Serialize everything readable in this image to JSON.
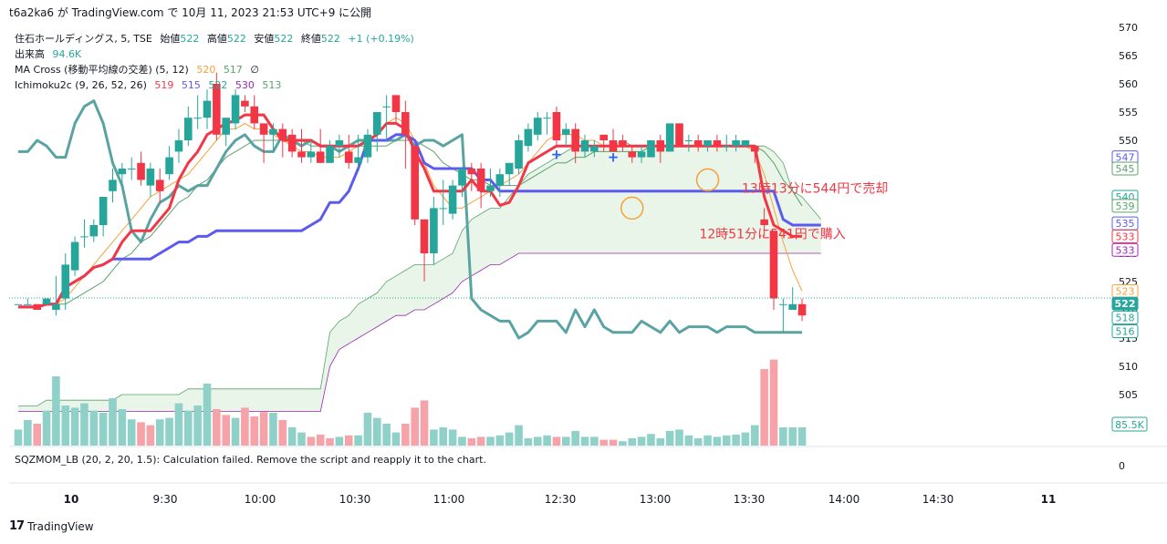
{
  "header": {
    "published": "t6a2ka6 が TradingView.com で 10月 11, 2023 21:53 UTC+9 に公開"
  },
  "legend": {
    "symbol": "住石ホールディングス, 5, TSE",
    "open_label": "始値",
    "open": "522",
    "high_label": "高値",
    "high": "522",
    "low_label": "安値",
    "low": "522",
    "close_label": "終値",
    "close": "522",
    "change": "+1 (+0.19%)",
    "volume_label": "出来高",
    "volume": "94.6K",
    "ma_label": "MA Cross (移動平均線の交差) (5, 12)",
    "ma_fast": "520",
    "ma_slow": "517",
    "ma_flag": "∅",
    "ichimoku_label": "Ichimoku2c (9, 26, 52, 26)",
    "ichi_v1": "519",
    "ichi_v2": "515",
    "ichi_v3": "522",
    "ichi_v4": "530",
    "ichi_v5": "513"
  },
  "indicator_note": "SQZMOM_LB (20, 2, 20, 1.5): Calculation failed. Remove the script and reapply it to the chart.",
  "footer": {
    "brand": "TradingView"
  },
  "colors": {
    "up": "#26a69a",
    "down": "#f23645",
    "tenkan": "#f23645",
    "kijun": "#5b5bf0",
    "chikou": "#5ba3a3",
    "cloud": "#e6f4e6",
    "ma_fast": "#f5a23c",
    "ma_slow": "#5aa36a"
  },
  "chart_data": {
    "type": "candlestick",
    "symbol": "住石ホールディングス",
    "timeframe": "5",
    "y_axis": {
      "min": 500,
      "max": 570,
      "ticks": [
        505,
        510,
        515,
        520,
        525,
        530,
        535,
        540,
        545,
        550,
        555,
        560,
        565,
        570
      ]
    },
    "x_axis_ticks": [
      "10",
      "9:30",
      "10:00",
      "10:30",
      "11:00",
      "12:30",
      "13:00",
      "13:30",
      "14:00",
      "14:30",
      "11"
    ],
    "price_labels": [
      {
        "value": "547",
        "price": 547,
        "color": "#5b5bf0",
        "fill": false
      },
      {
        "value": "545",
        "price": 545,
        "color": "#5aa36a",
        "fill": false
      },
      {
        "value": "540",
        "price": 540,
        "color": "#26a69a",
        "fill": false
      },
      {
        "value": "539",
        "price": 538.4,
        "color": "#5aa36a",
        "fill": false
      },
      {
        "value": "535",
        "price": 535.3,
        "color": "#5b5bf0",
        "fill": false
      },
      {
        "value": "533",
        "price": 533,
        "color": "#f23645",
        "fill": false
      },
      {
        "value": "533",
        "price": 530.6,
        "color": "#9c27b0",
        "fill": false
      },
      {
        "value": "523",
        "price": 523.3,
        "color": "#f5a23c",
        "fill": false
      },
      {
        "value": "522",
        "price": 521.1,
        "color": "#ffffff",
        "fill": true,
        "bg": "#26a69a"
      },
      {
        "value": "518",
        "price": 518.6,
        "color": "#26a69a",
        "fill": false
      },
      {
        "value": "516",
        "price": 516.2,
        "color": "#26a69a",
        "fill": false
      }
    ],
    "volume_label": "85.5K",
    "volume_axis_zero": "0",
    "annotations": [
      {
        "text": "13時13分に544円で売却",
        "price": 541.5,
        "bar": 51.5
      },
      {
        "text": "12時51分に541円で購入",
        "price": 533.5,
        "bar": 47
      }
    ],
    "candles": [
      [
        521,
        521,
        521,
        521
      ],
      [
        521,
        522,
        521,
        521
      ],
      [
        521,
        521,
        520,
        520
      ],
      [
        521,
        522,
        521,
        522
      ],
      [
        520,
        526,
        519,
        521
      ],
      [
        522,
        530,
        520,
        528
      ],
      [
        527,
        533,
        526,
        532
      ],
      [
        533,
        536,
        531,
        533
      ],
      [
        533,
        536,
        532,
        535
      ],
      [
        535,
        540,
        533,
        540
      ],
      [
        541,
        545,
        539,
        543
      ],
      [
        544,
        546,
        542,
        545
      ],
      [
        545,
        547,
        543,
        545
      ],
      [
        546,
        548,
        542,
        543
      ],
      [
        542,
        546,
        540,
        545
      ],
      [
        543,
        545,
        539,
        541
      ],
      [
        544,
        549,
        543,
        547
      ],
      [
        548,
        552,
        546,
        550
      ],
      [
        550,
        556,
        549,
        554
      ],
      [
        554,
        558,
        552,
        554
      ],
      [
        554,
        559,
        552,
        557
      ],
      [
        560,
        562,
        550,
        551
      ],
      [
        551,
        554,
        549,
        554
      ],
      [
        553,
        559,
        552,
        558
      ],
      [
        557,
        558,
        555,
        556
      ],
      [
        556,
        558,
        552,
        553
      ],
      [
        553,
        553,
        546,
        551
      ],
      [
        551,
        553,
        548,
        552
      ],
      [
        552,
        553,
        547,
        550
      ],
      [
        551,
        552,
        547,
        548
      ],
      [
        548,
        552,
        546,
        547
      ],
      [
        547,
        550,
        546,
        548
      ],
      [
        548,
        552,
        546,
        546
      ],
      [
        546,
        550,
        546,
        549
      ],
      [
        549,
        551,
        547,
        550
      ],
      [
        548,
        551,
        545,
        546
      ],
      [
        546,
        551,
        545,
        547
      ],
      [
        547,
        552,
        546,
        551
      ],
      [
        551,
        555,
        548,
        555
      ],
      [
        556,
        558,
        550,
        556
      ],
      [
        558,
        558,
        553,
        555
      ],
      [
        555,
        557,
        545,
        551
      ],
      [
        549,
        549,
        535,
        536
      ],
      [
        536,
        536,
        525,
        530
      ],
      [
        530,
        540,
        528,
        538
      ],
      [
        538,
        543,
        535,
        538
      ],
      [
        537,
        543,
        536,
        542
      ],
      [
        542,
        545,
        540,
        545
      ],
      [
        545,
        546,
        541,
        544
      ],
      [
        545,
        546,
        538,
        541
      ],
      [
        541,
        545,
        540,
        542
      ],
      [
        542,
        545,
        540,
        544
      ],
      [
        544,
        546,
        542,
        546
      ],
      [
        545,
        551,
        544,
        550
      ],
      [
        549,
        553,
        548,
        552
      ],
      [
        551,
        555,
        550,
        554
      ],
      [
        554,
        555,
        551,
        554
      ],
      [
        555,
        556,
        549,
        550
      ],
      [
        551,
        553,
        549,
        552
      ],
      [
        552,
        553,
        546,
        548
      ],
      [
        548,
        551,
        547,
        550
      ],
      [
        548,
        550,
        547,
        549
      ],
      [
        551,
        551,
        548,
        550
      ],
      [
        550,
        552,
        548,
        548
      ],
      [
        550,
        551,
        548,
        549
      ],
      [
        548,
        549,
        546,
        547
      ],
      [
        547,
        549,
        546,
        548
      ],
      [
        547,
        550,
        547,
        550
      ],
      [
        550,
        551,
        546,
        548
      ],
      [
        548,
        553,
        548,
        553
      ],
      [
        553,
        553,
        549,
        549
      ],
      [
        550,
        551,
        548,
        550
      ],
      [
        550,
        551,
        548,
        549
      ],
      [
        549,
        550,
        548,
        550
      ],
      [
        550,
        551,
        548,
        549
      ],
      [
        549,
        551,
        548,
        549
      ],
      [
        549,
        551,
        548,
        550
      ],
      [
        549,
        550,
        549,
        550
      ],
      [
        549,
        549,
        546,
        548
      ],
      [
        536,
        538,
        533,
        535
      ],
      [
        534,
        534,
        520,
        522
      ],
      [
        521,
        522,
        516,
        521
      ],
      [
        520,
        524,
        520,
        521
      ],
      [
        521,
        522,
        518,
        519
      ]
    ],
    "volume": [
      [
        22,
        1
      ],
      [
        35,
        1
      ],
      [
        30,
        0
      ],
      [
        48,
        1
      ],
      [
        95,
        1
      ],
      [
        55,
        1
      ],
      [
        52,
        1
      ],
      [
        58,
        1
      ],
      [
        48,
        1
      ],
      [
        45,
        1
      ],
      [
        65,
        1
      ],
      [
        50,
        1
      ],
      [
        36,
        1
      ],
      [
        32,
        0
      ],
      [
        28,
        0
      ],
      [
        36,
        1
      ],
      [
        38,
        1
      ],
      [
        58,
        1
      ],
      [
        48,
        1
      ],
      [
        55,
        1
      ],
      [
        85,
        1
      ],
      [
        50,
        0
      ],
      [
        42,
        0
      ],
      [
        38,
        1
      ],
      [
        52,
        0
      ],
      [
        40,
        0
      ],
      [
        46,
        0
      ],
      [
        45,
        1
      ],
      [
        35,
        0
      ],
      [
        25,
        1
      ],
      [
        18,
        1
      ],
      [
        12,
        0
      ],
      [
        15,
        0
      ],
      [
        10,
        0
      ],
      [
        12,
        1
      ],
      [
        14,
        0
      ],
      [
        14,
        1
      ],
      [
        45,
        1
      ],
      [
        38,
        1
      ],
      [
        30,
        1
      ],
      [
        18,
        1
      ],
      [
        30,
        0
      ],
      [
        52,
        0
      ],
      [
        62,
        0
      ],
      [
        22,
        1
      ],
      [
        25,
        1
      ],
      [
        22,
        1
      ],
      [
        12,
        1
      ],
      [
        10,
        0
      ],
      [
        12,
        0
      ],
      [
        12,
        1
      ],
      [
        14,
        1
      ],
      [
        18,
        1
      ],
      [
        28,
        1
      ],
      [
        10,
        1
      ],
      [
        12,
        1
      ],
      [
        14,
        1
      ],
      [
        12,
        0
      ],
      [
        12,
        1
      ],
      [
        20,
        1
      ],
      [
        12,
        1
      ],
      [
        12,
        1
      ],
      [
        8,
        0
      ],
      [
        8,
        0
      ],
      [
        6,
        1
      ],
      [
        10,
        1
      ],
      [
        12,
        1
      ],
      [
        16,
        1
      ],
      [
        10,
        1
      ],
      [
        20,
        1
      ],
      [
        22,
        1
      ],
      [
        14,
        1
      ],
      [
        10,
        1
      ],
      [
        14,
        1
      ],
      [
        12,
        1
      ],
      [
        14,
        1
      ],
      [
        15,
        1
      ],
      [
        18,
        1
      ],
      [
        28,
        1
      ],
      [
        105,
        0
      ],
      [
        118,
        0
      ],
      [
        25,
        1
      ],
      [
        25,
        1
      ],
      [
        25,
        1
      ]
    ],
    "tenkan": [
      520.5,
      520.5,
      520.5,
      521,
      521,
      524,
      525,
      526,
      527.5,
      528,
      529,
      532,
      534,
      534,
      534,
      536,
      538,
      543,
      546,
      548,
      551,
      552,
      553,
      553.5,
      554.5,
      554.5,
      554.5,
      552,
      550,
      550,
      550,
      550,
      549,
      549,
      549,
      549,
      549,
      550,
      551,
      553,
      553,
      552,
      548,
      545,
      541,
      541,
      541,
      541,
      543,
      541,
      541,
      538.5,
      539,
      542,
      546,
      547,
      548,
      549,
      549,
      549,
      549,
      549,
      549,
      549,
      549,
      549,
      549,
      549,
      549,
      549,
      549,
      549,
      549,
      549,
      549,
      549,
      549,
      549,
      549,
      540,
      535,
      534,
      533,
      533
    ],
    "kijun": [
      520.5,
      520.5,
      520.5,
      521,
      521,
      524,
      525,
      526,
      527.5,
      528,
      529,
      529,
      529,
      529,
      529,
      530,
      531,
      532,
      532,
      533,
      533,
      534,
      534,
      534,
      534,
      534,
      534,
      534,
      534,
      534,
      534,
      535,
      536,
      539,
      539,
      541,
      545,
      550,
      550,
      550,
      551,
      551,
      550,
      546,
      545,
      545,
      545,
      545,
      545,
      543,
      543,
      541,
      541,
      541,
      541,
      541,
      541,
      541,
      541,
      541,
      541,
      541,
      541,
      541,
      541,
      541,
      541,
      541,
      541,
      541,
      541,
      541,
      541,
      541,
      541,
      541,
      541,
      541,
      541,
      541,
      541,
      536,
      535,
      535,
      535,
      535
    ],
    "chikou": [
      548,
      548,
      550,
      549,
      547,
      547,
      553,
      556,
      557,
      553,
      546,
      542,
      534,
      532,
      536,
      539,
      540,
      542,
      541,
      542,
      542,
      545,
      548,
      550,
      551,
      549,
      548,
      548,
      551,
      550,
      549,
      550,
      549,
      549,
      548,
      549,
      550,
      550,
      550,
      550,
      550,
      551,
      549,
      550,
      550,
      549,
      550,
      551,
      522,
      520,
      519,
      518,
      518,
      515,
      516,
      518,
      518,
      518,
      516,
      520,
      517,
      520,
      517,
      516,
      516,
      516,
      518,
      517,
      516,
      518,
      516,
      517,
      517,
      517,
      516,
      517,
      517,
      517,
      516,
      516,
      516,
      516,
      516,
      516
    ],
    "senkou_a": [
      503,
      503,
      503,
      504,
      504,
      504,
      504,
      504,
      504,
      504,
      504,
      505,
      505,
      505,
      505,
      505,
      505,
      505,
      506,
      506,
      506,
      506,
      506,
      506,
      506,
      506,
      506,
      506,
      506,
      506,
      506,
      506,
      506,
      516,
      518,
      519,
      521,
      522,
      523,
      525,
      526,
      527,
      528,
      528,
      528,
      529,
      530,
      534,
      536,
      537,
      538,
      538,
      540,
      542,
      544,
      545,
      546,
      547,
      548,
      549,
      549,
      549,
      549,
      549,
      550,
      549,
      549,
      549,
      549,
      549,
      549,
      549,
      549,
      549,
      549,
      549,
      549,
      549,
      549,
      549,
      548,
      546,
      541,
      540,
      538,
      536
    ],
    "senkou_b": [
      502,
      502,
      502,
      502,
      502,
      502,
      502,
      502,
      502,
      502,
      502,
      502,
      502,
      502,
      502,
      502,
      502,
      502,
      502,
      502,
      502,
      502,
      502,
      502,
      502,
      502,
      502,
      502,
      502,
      502,
      502,
      502,
      502,
      510,
      513,
      514,
      515,
      516,
      517,
      518,
      519,
      519,
      520,
      520,
      521,
      522,
      523,
      525,
      526,
      527,
      528,
      528,
      529,
      530,
      530,
      530,
      530,
      530,
      530,
      530,
      530,
      530,
      530,
      530,
      530,
      530,
      530,
      530,
      530,
      530,
      530,
      530,
      530,
      530,
      530,
      530,
      530,
      530,
      530,
      530,
      530,
      530,
      530,
      530,
      530,
      530
    ],
    "ma_fast": [
      520.5,
      520.5,
      520.5,
      521,
      521,
      522,
      524,
      526,
      528,
      530,
      532,
      534,
      536,
      538,
      540,
      541,
      542,
      543,
      544,
      546,
      548,
      550,
      552,
      552,
      553,
      552,
      552,
      551,
      550,
      549,
      548,
      548,
      547,
      547,
      547,
      548,
      549,
      550,
      551,
      553,
      554,
      553,
      550,
      546,
      542,
      540,
      538,
      538,
      539,
      540,
      541,
      542,
      543,
      544,
      546,
      548,
      550,
      551,
      551,
      551,
      550,
      550,
      549,
      549,
      549,
      549,
      549,
      549,
      549,
      549,
      549,
      549,
      549,
      549,
      549,
      549,
      549,
      549,
      548,
      544,
      538,
      532,
      527,
      523.3
    ],
    "ma_slow": [
      520.5,
      520.5,
      520.5,
      521,
      521,
      521,
      522,
      523,
      524,
      525,
      527,
      529,
      530,
      532,
      533,
      535,
      537,
      539,
      540,
      542,
      543,
      545,
      547,
      548,
      549,
      550,
      550,
      550,
      550,
      550,
      550,
      549,
      549,
      549,
      549,
      549,
      549,
      549,
      549,
      549,
      550,
      550,
      550,
      549,
      548,
      546,
      545,
      544,
      543,
      543,
      542,
      542,
      542,
      542,
      543,
      544,
      545,
      546,
      546,
      547,
      547,
      548,
      548,
      548,
      548,
      548,
      548,
      549,
      549,
      549,
      549,
      549,
      549,
      549,
      549,
      549,
      549,
      549,
      549,
      548,
      546,
      543,
      541,
      538.4
    ],
    "markers": [
      {
        "bar": 63,
        "price": 547,
        "label": "+"
      },
      {
        "bar": 57,
        "price": 547.5,
        "label": "+"
      }
    ]
  }
}
